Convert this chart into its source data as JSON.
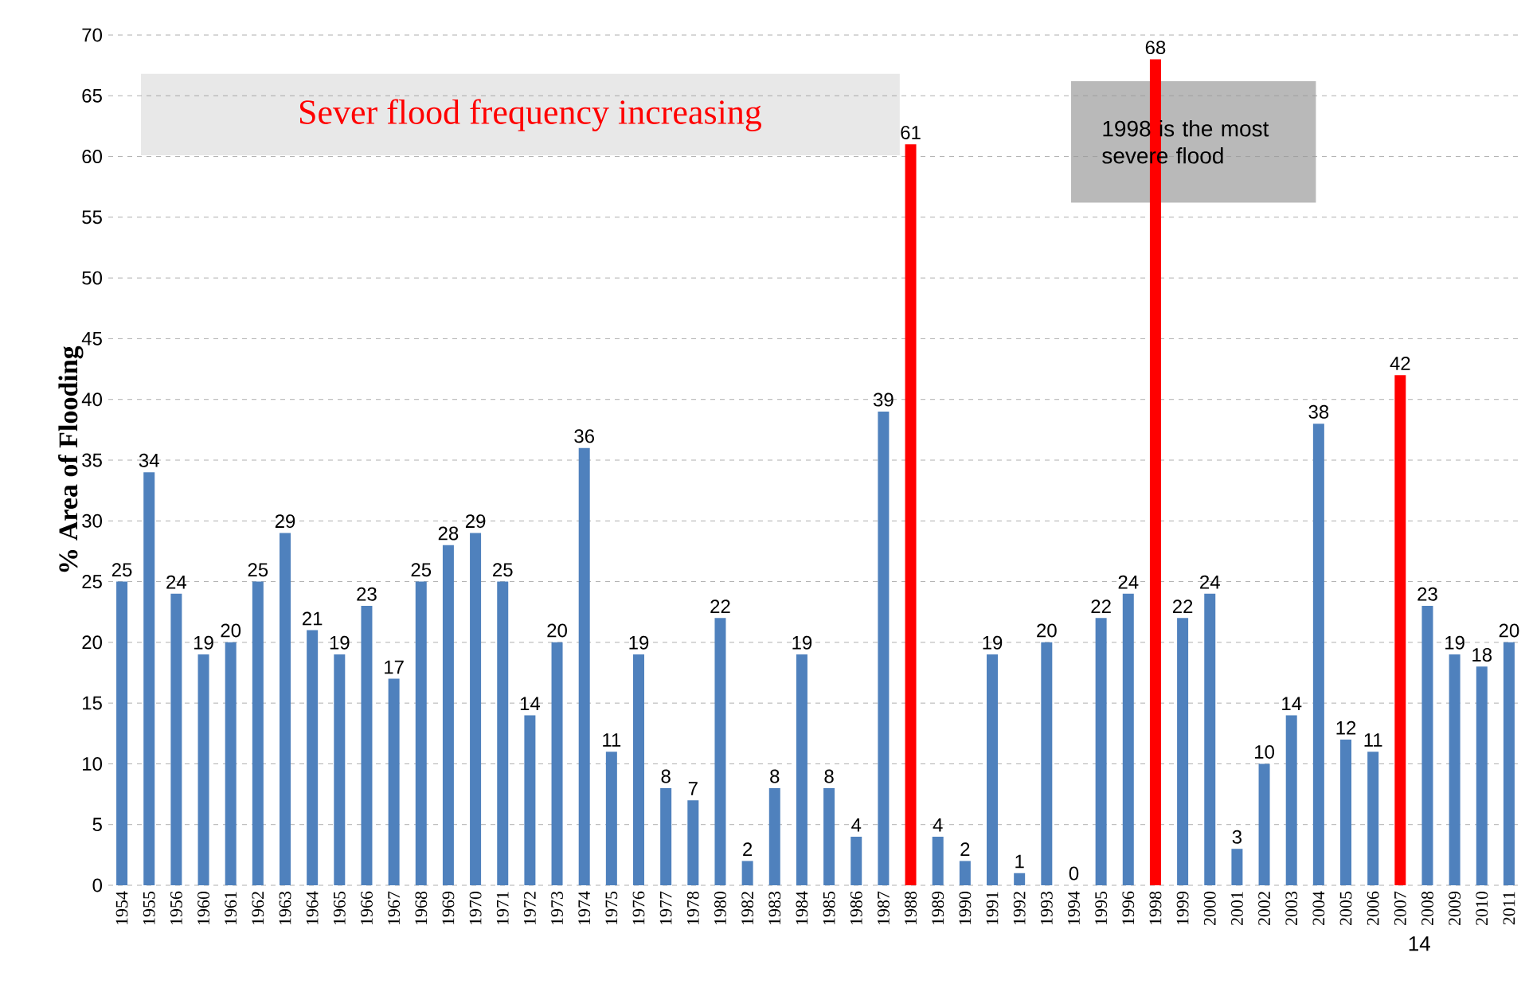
{
  "chart_data": {
    "type": "bar",
    "ylabel": "% Area of Flooding",
    "categories": [
      "1954",
      "1955",
      "1956",
      "1960",
      "1961",
      "1962",
      "1963",
      "1964",
      "1965",
      "1966",
      "1967",
      "1968",
      "1969",
      "1970",
      "1971",
      "1972",
      "1973",
      "1974",
      "1975",
      "1976",
      "1977",
      "1978",
      "1980",
      "1982",
      "1983",
      "1984",
      "1985",
      "1986",
      "1987",
      "1988",
      "1989",
      "1990",
      "1991",
      "1992",
      "1993",
      "1994",
      "1995",
      "1996",
      "1998",
      "1999",
      "2000",
      "2001",
      "2002",
      "2003",
      "2004",
      "2005",
      "2006",
      "2007",
      "2008",
      "2009",
      "2010",
      "2011"
    ],
    "values": [
      25,
      34,
      24,
      19,
      20,
      25,
      29,
      21,
      19,
      23,
      17,
      25,
      28,
      29,
      25,
      14,
      20,
      36,
      11,
      19,
      8,
      7,
      22,
      2,
      8,
      19,
      8,
      4,
      39,
      61,
      4,
      2,
      19,
      1,
      20,
      0,
      22,
      24,
      68,
      22,
      24,
      3,
      10,
      14,
      38,
      12,
      11,
      42,
      23,
      19,
      18,
      20
    ],
    "colors": [
      "#4f81bd",
      "#4f81bd",
      "#4f81bd",
      "#4f81bd",
      "#4f81bd",
      "#4f81bd",
      "#4f81bd",
      "#4f81bd",
      "#4f81bd",
      "#4f81bd",
      "#4f81bd",
      "#4f81bd",
      "#4f81bd",
      "#4f81bd",
      "#4f81bd",
      "#4f81bd",
      "#4f81bd",
      "#4f81bd",
      "#4f81bd",
      "#4f81bd",
      "#4f81bd",
      "#4f81bd",
      "#4f81bd",
      "#4f81bd",
      "#4f81bd",
      "#4f81bd",
      "#4f81bd",
      "#4f81bd",
      "#4f81bd",
      "#ff0000",
      "#4f81bd",
      "#4f81bd",
      "#4f81bd",
      "#4f81bd",
      "#4f81bd",
      "#4f81bd",
      "#4f81bd",
      "#4f81bd",
      "#ff0000",
      "#4f81bd",
      "#4f81bd",
      "#4f81bd",
      "#4f81bd",
      "#4f81bd",
      "#4f81bd",
      "#4f81bd",
      "#4f81bd",
      "#ff0000",
      "#4f81bd",
      "#4f81bd",
      "#4f81bd",
      "#4f81bd"
    ],
    "ylim": [
      0,
      70
    ],
    "yticks": [
      0,
      5,
      10,
      15,
      20,
      25,
      30,
      35,
      40,
      45,
      50,
      55,
      60,
      65,
      70
    ],
    "grid": "y",
    "data_labels": true,
    "annotations": [
      "Sever flood frequency increasing",
      "1998 is the most severe flood",
      "14"
    ]
  }
}
